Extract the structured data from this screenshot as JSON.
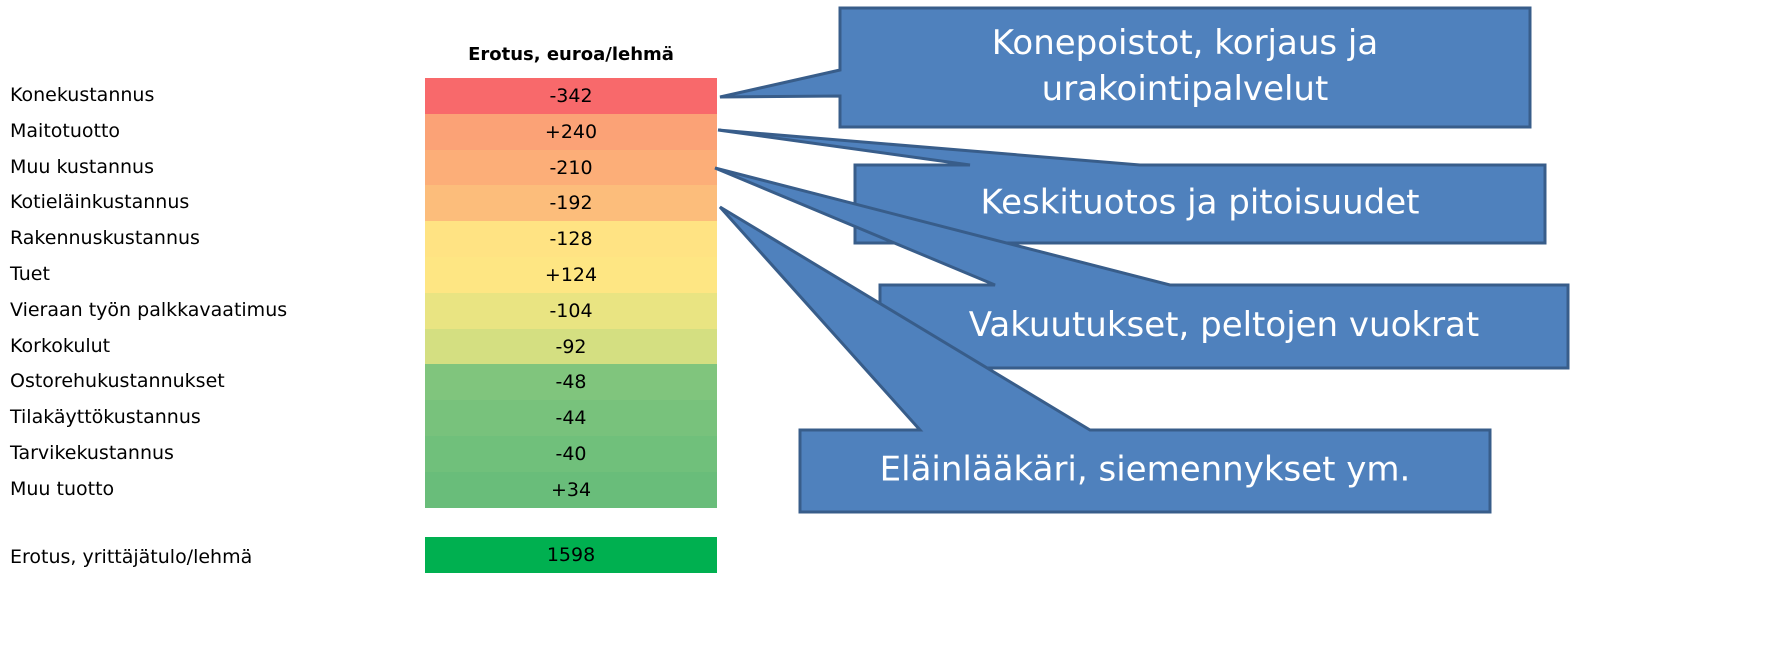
{
  "table": {
    "header": "Erotus, euroa/lehmä",
    "rows": [
      {
        "label": "Konekustannus",
        "value": "-342",
        "color": "#f8696b"
      },
      {
        "label": "Maitotuotto",
        "value": "+240",
        "color": "#fba276"
      },
      {
        "label": "Muu kustannus",
        "value": "-210",
        "color": "#fcae78"
      },
      {
        "label": "Kotieläinkustannus",
        "value": "-192",
        "color": "#fcbd7b"
      },
      {
        "label": "Rakennuskustannus",
        "value": "-128",
        "color": "#ffe383"
      },
      {
        "label": "Tuet",
        "value": "+124",
        "color": "#fee683"
      },
      {
        "label": "Vieraan työn palkkavaatimus",
        "value": "-104",
        "color": "#e9e482"
      },
      {
        "label": "Korkokulut",
        "value": "-92",
        "color": "#d4df81"
      },
      {
        "label": "Ostorehukustannukset",
        "value": "-48",
        "color": "#80c57d"
      },
      {
        "label": "Tilakäyttökustannus",
        "value": "-44",
        "color": "#78c27c"
      },
      {
        "label": "Tarvikekustannus",
        "value": "-40",
        "color": "#70c07b"
      },
      {
        "label": "Muu tuotto",
        "value": "+34",
        "color": "#69bd7a"
      }
    ],
    "total": {
      "label": "Erotus, yrittäjätulo/lehmä",
      "value": "1598",
      "color": "#00b050"
    }
  },
  "callouts": [
    {
      "lines": [
        "Konepoistot, korjaus ja",
        "urakointipalvelut"
      ]
    },
    {
      "lines": [
        "Keskituotos ja pitoisuudet"
      ]
    },
    {
      "lines": [
        "Vakuutukset, peltojen vuokrat"
      ]
    },
    {
      "lines": [
        "Eläinlääkäri, siemennykset ym."
      ]
    }
  ]
}
